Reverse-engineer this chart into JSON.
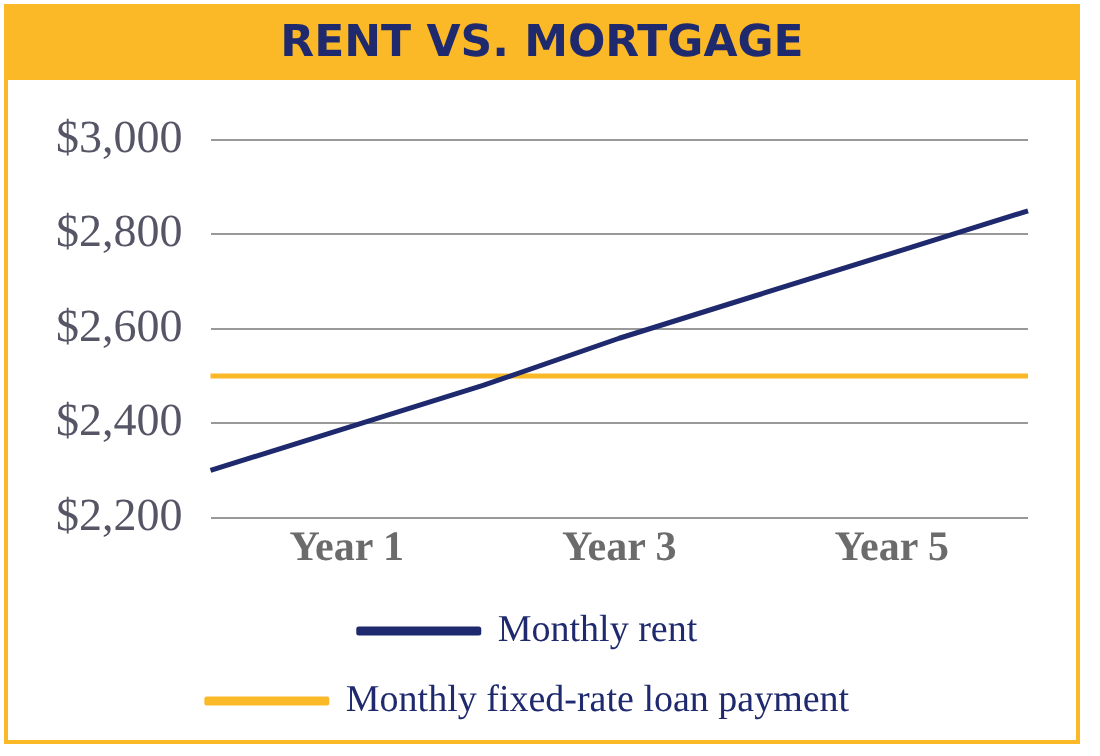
{
  "chart_data": {
    "type": "line",
    "title": "RENT VS. MORTGAGE",
    "categories": [
      null,
      "Year 1",
      null,
      "Year 3",
      null,
      "Year 5",
      null
    ],
    "ylim": [
      2200,
      3000
    ],
    "yticks": [
      {
        "value": 2200,
        "label": "$2,200"
      },
      {
        "value": 2400,
        "label": "$2,400"
      },
      {
        "value": 2600,
        "label": "$2,600"
      },
      {
        "value": 2800,
        "label": "$2,800"
      },
      {
        "value": 3000,
        "label": "$3,000"
      }
    ],
    "series": [
      {
        "name": "Monthly rent",
        "color": "#1f2a6e",
        "values": [
          2300,
          2390,
          2480,
          2580,
          2670,
          2760,
          2850
        ]
      },
      {
        "name": "Monthly fixed-rate loan payment",
        "color": "#fbb827",
        "values": [
          2500,
          2500,
          2500,
          2500,
          2500,
          2500,
          2500
        ]
      }
    ],
    "grid": "y",
    "legend": "bottom",
    "marker": "none",
    "line_style": "solid"
  }
}
